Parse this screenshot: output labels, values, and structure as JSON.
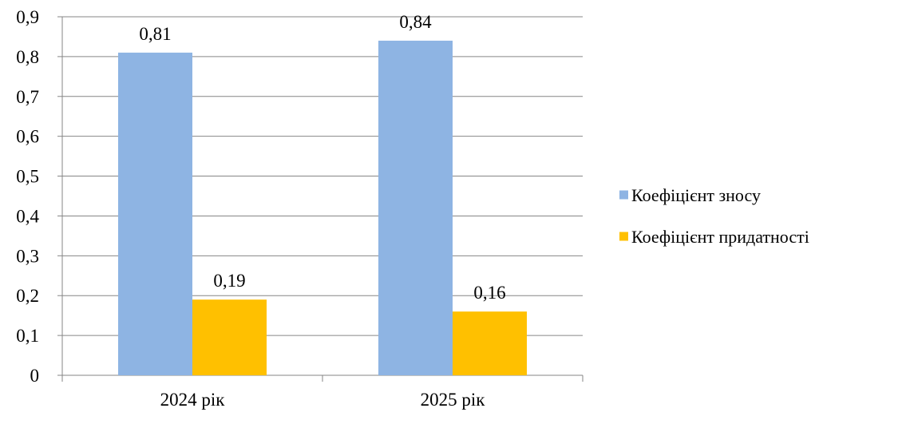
{
  "chart_data": {
    "type": "bar",
    "title": "",
    "xlabel": "",
    "ylabel": "",
    "categories": [
      "2024 рік",
      "2025 рік"
    ],
    "series": [
      {
        "name": "Коефіцієнт зносу",
        "values": [
          0.81,
          0.84
        ],
        "labels": [
          "0,81",
          "0,84"
        ],
        "color": "#8EB4E3"
      },
      {
        "name": "Коефіцієнт придатності",
        "values": [
          0.19,
          0.16
        ],
        "labels": [
          "0,19",
          "0,16"
        ],
        "color": "#FFC000"
      }
    ],
    "ylim": [
      0,
      0.9
    ],
    "y_ticks": [
      0,
      0.1,
      0.2,
      0.3,
      0.4,
      0.5,
      0.6,
      0.7,
      0.8,
      0.9
    ],
    "y_tick_labels": [
      "0",
      "0,1",
      "0,2",
      "0,3",
      "0,4",
      "0,5",
      "0,6",
      "0,7",
      "0,8",
      "0,9"
    ],
    "grid": "horizontal",
    "legend_position": "right"
  }
}
